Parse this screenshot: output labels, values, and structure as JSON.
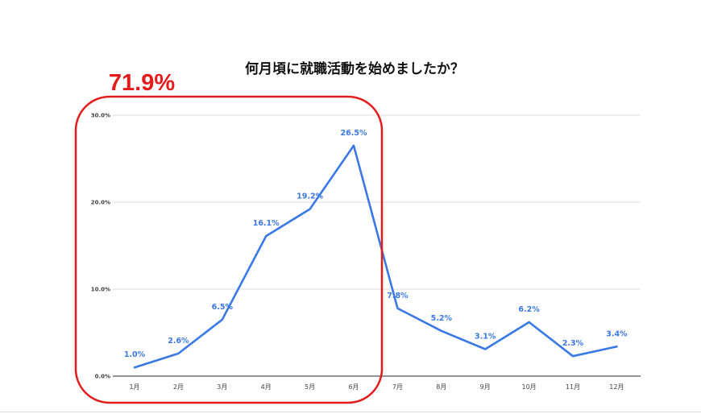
{
  "chart_data": {
    "type": "line",
    "title": "何月頃に就職活動を始めましたか？",
    "xlabel": "",
    "ylabel": "",
    "categories": [
      "1月",
      "2月",
      "3月",
      "4月",
      "5月",
      "6月",
      "7月",
      "8月",
      "9月",
      "10月",
      "11月",
      "12月"
    ],
    "values": [
      1.0,
      2.6,
      6.5,
      16.1,
      19.2,
      26.5,
      7.8,
      5.2,
      3.1,
      6.2,
      2.3,
      3.4
    ],
    "data_labels": [
      "1.0%",
      "2.6%",
      "6.5%",
      "16.1%",
      "19.2%",
      "26.5%",
      "7.8%",
      "5.2%",
      "3.1%",
      "6.2%",
      "2.3%",
      "3.4%"
    ],
    "ylim": [
      0,
      30
    ],
    "yticks": [
      0,
      10,
      20,
      30
    ],
    "ytick_labels": [
      "0.0%",
      "10.0%",
      "20.0%",
      "30.0%"
    ],
    "grid": true,
    "line_color": "#3b78e7",
    "annotation": {
      "text": "71.9%",
      "color": "#e31b1b",
      "covers_categories": [
        "1月",
        "2月",
        "3月",
        "4月",
        "5月",
        "6月"
      ]
    }
  }
}
